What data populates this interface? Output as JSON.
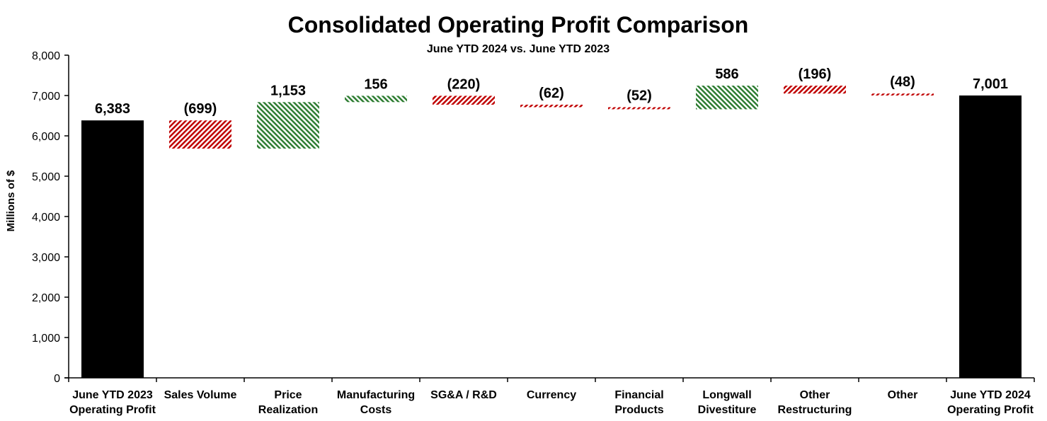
{
  "chart_data": {
    "type": "waterfall",
    "title": "Consolidated Operating Profit Comparison",
    "subtitle": "June YTD 2024 vs. June YTD 2023",
    "ylabel": "Millions of $",
    "xlabel": "",
    "ylim": [
      0,
      8000
    ],
    "yticks": [
      0,
      1000,
      2000,
      3000,
      4000,
      5000,
      6000,
      7000,
      8000
    ],
    "ytick_labels": [
      "0",
      "1,000",
      "2,000",
      "3,000",
      "4,000",
      "5,000",
      "6,000",
      "7,000",
      "8,000"
    ],
    "grid": false,
    "categories": [
      [
        "June YTD 2023",
        "Operating Profit"
      ],
      [
        "Sales Volume"
      ],
      [
        "Price",
        "Realization"
      ],
      [
        "Manufacturing",
        "Costs"
      ],
      [
        "SG&A / R&D"
      ],
      [
        "Currency"
      ],
      [
        "Financial",
        "Products"
      ],
      [
        "Longwall",
        "Divestiture"
      ],
      [
        "Other",
        "Restructuring"
      ],
      [
        "Other"
      ],
      [
        "June YTD 2024",
        "Operating Profit"
      ]
    ],
    "values": [
      6383,
      -699,
      1153,
      156,
      -220,
      -62,
      -52,
      586,
      -196,
      -48,
      7001
    ],
    "kinds": [
      "total",
      "delta",
      "delta",
      "delta",
      "delta",
      "delta",
      "delta",
      "delta",
      "delta",
      "delta",
      "total"
    ],
    "data_labels": [
      "6,383",
      "(699)",
      "1,153",
      "156",
      "(220)",
      "(62)",
      "(52)",
      "586",
      "(196)",
      "(48)",
      "7,001"
    ],
    "colors": {
      "total": "#000000",
      "increase": "#2e7d32",
      "decrease": "#c00000"
    }
  }
}
